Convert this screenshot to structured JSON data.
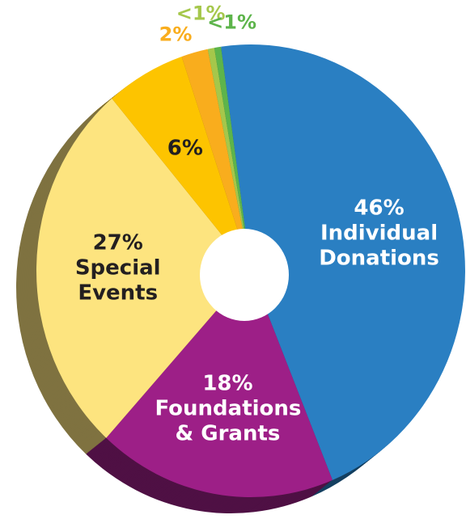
{
  "chart_data": {
    "type": "pie",
    "donut": true,
    "categories": [
      "Individual Donations",
      "Foundations & Grants",
      "Special Events",
      null,
      null,
      null,
      null
    ],
    "values": [
      46,
      18,
      27,
      6,
      2,
      0.5,
      0.5
    ],
    "value_labels": [
      "46%",
      "18%",
      "27%",
      "6%",
      "2%",
      "<1%",
      "<1%"
    ],
    "colors": [
      "#2a7fc2",
      "#9d1f87",
      "#fde47f",
      "#fdc400",
      "#f9ad1d",
      "#a5c74b",
      "#5db44b"
    ]
  }
}
